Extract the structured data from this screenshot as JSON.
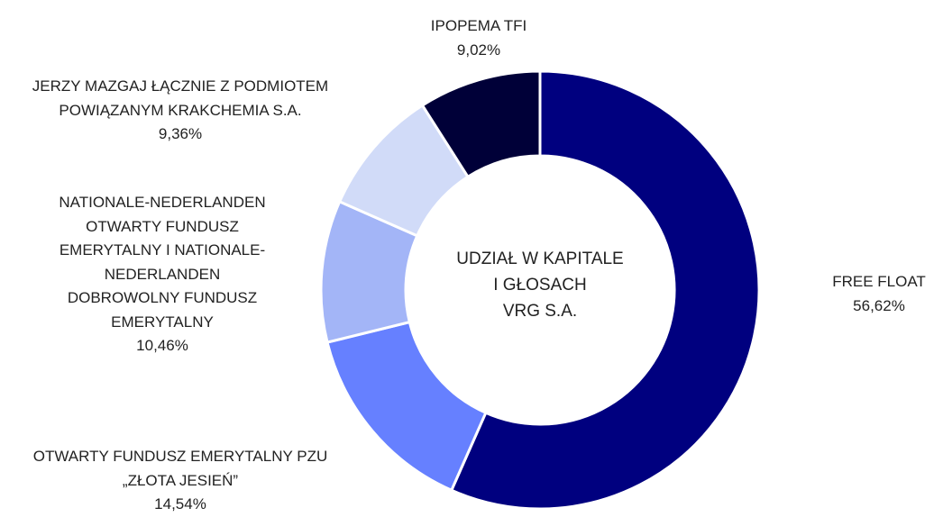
{
  "chart_data": {
    "type": "donut",
    "title": "UDZIAŁ W KAPITALE\nI GŁOSACH\nVRG S.A.",
    "categories": [
      "FREE FLOAT",
      "OTWARTY FUNDUSZ EMERYTALNY PZU\n„ZŁOTA JESIEŃ”",
      "NATIONALE-NEDERLANDEN\nOTWARTY FUNDUSZ\nEMERYTALNY I NATIONALE-\nNEDERLANDEN\nDOBROWOLNY FUNDUSZ\nEMERYTALNY",
      "JERZY MAZGAJ ŁĄCZNIE Z PODMIOTEM\nPOWIĄZANYM KRAKCHEMIA S.A.",
      "IPOPEMA TFI"
    ],
    "values": [
      56.62,
      14.54,
      10.46,
      9.36,
      9.02
    ],
    "value_labels": [
      "56,62%",
      "14,54%",
      "10,46%",
      "9,36%",
      "9,02%"
    ],
    "colors": [
      "#00007f",
      "#6680ff",
      "#a3b5f7",
      "#d1dbf8",
      "#000038"
    ]
  }
}
